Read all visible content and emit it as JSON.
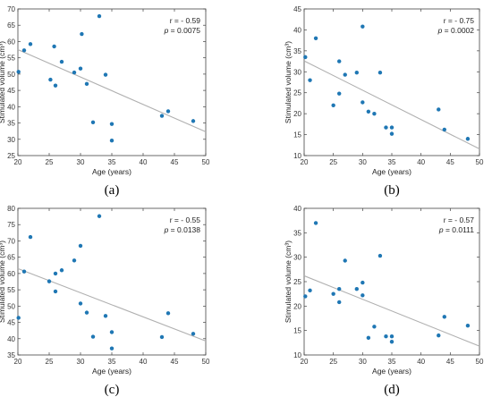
{
  "colors": {
    "points": "#1f77b4",
    "fit_line": "#b0b0b0",
    "axis": "#444444"
  },
  "chart_data": [
    {
      "type": "scatter",
      "panel_label": "(a)",
      "xlabel": "Age (years)",
      "ylabel": "Stimulated volume (cm³)",
      "xlim": [
        20,
        50
      ],
      "ylim": [
        25,
        70
      ],
      "xticks": [
        20,
        25,
        30,
        35,
        40,
        45,
        50
      ],
      "yticks": [
        25,
        30,
        35,
        40,
        45,
        50,
        55,
        60,
        65,
        70
      ],
      "stat_r": "r = - 0.59",
      "stat_p_symbol": "p",
      "stat_p_value": "= 0.0075",
      "fit_line": {
        "x": [
          20,
          50
        ],
        "y": [
          57.5,
          32.3
        ]
      },
      "grid": false,
      "points": [
        {
          "x": 20.1,
          "y": 50.7
        },
        {
          "x": 21.0,
          "y": 57.3
        },
        {
          "x": 22.0,
          "y": 59.2
        },
        {
          "x": 25.2,
          "y": 48.3
        },
        {
          "x": 25.8,
          "y": 58.5
        },
        {
          "x": 26.0,
          "y": 46.5
        },
        {
          "x": 27.0,
          "y": 53.8
        },
        {
          "x": 29.0,
          "y": 50.5
        },
        {
          "x": 30.0,
          "y": 51.7
        },
        {
          "x": 30.2,
          "y": 62.3
        },
        {
          "x": 31.0,
          "y": 47.0
        },
        {
          "x": 32.0,
          "y": 35.2
        },
        {
          "x": 33.0,
          "y": 67.8
        },
        {
          "x": 34.0,
          "y": 49.8
        },
        {
          "x": 35.0,
          "y": 34.7
        },
        {
          "x": 35.0,
          "y": 29.6
        },
        {
          "x": 43.0,
          "y": 37.2
        },
        {
          "x": 44.0,
          "y": 38.6
        },
        {
          "x": 48.0,
          "y": 35.6
        }
      ]
    },
    {
      "type": "scatter",
      "panel_label": "(b)",
      "xlabel": "Age (years)",
      "ylabel": "Stimulated volume (cm³)",
      "xlim": [
        20,
        50
      ],
      "ylim": [
        10,
        45
      ],
      "xticks": [
        20,
        25,
        30,
        35,
        40,
        45,
        50
      ],
      "yticks": [
        10,
        15,
        20,
        25,
        30,
        35,
        40,
        45
      ],
      "stat_r": "r = - 0.75",
      "stat_p_symbol": "p",
      "stat_p_value": "= 0.0002",
      "fit_line": {
        "x": [
          20,
          50
        ],
        "y": [
          32.6,
          11.6
        ]
      },
      "grid": false,
      "points": [
        {
          "x": 20.2,
          "y": 33.5
        },
        {
          "x": 21.0,
          "y": 28.0
        },
        {
          "x": 22.0,
          "y": 38.0
        },
        {
          "x": 25.0,
          "y": 22.0
        },
        {
          "x": 26.0,
          "y": 32.5
        },
        {
          "x": 26.0,
          "y": 24.8
        },
        {
          "x": 27.0,
          "y": 29.3
        },
        {
          "x": 29.0,
          "y": 29.8
        },
        {
          "x": 30.0,
          "y": 40.8
        },
        {
          "x": 30.0,
          "y": 22.7
        },
        {
          "x": 31.0,
          "y": 20.5
        },
        {
          "x": 32.0,
          "y": 20.0
        },
        {
          "x": 33.0,
          "y": 29.8
        },
        {
          "x": 34.0,
          "y": 16.7
        },
        {
          "x": 35.0,
          "y": 16.7
        },
        {
          "x": 35.0,
          "y": 15.2
        },
        {
          "x": 43.0,
          "y": 21.0
        },
        {
          "x": 44.0,
          "y": 16.2
        },
        {
          "x": 48.0,
          "y": 14.0
        }
      ]
    },
    {
      "type": "scatter",
      "panel_label": "(c)",
      "xlabel": "Age (years)",
      "ylabel": "Stimulated volume (cm³)",
      "xlim": [
        20,
        50
      ],
      "ylim": [
        35,
        80
      ],
      "xticks": [
        20,
        25,
        30,
        35,
        40,
        45,
        50
      ],
      "yticks": [
        35,
        40,
        45,
        50,
        55,
        60,
        65,
        70,
        75,
        80
      ],
      "stat_r": "r = - 0.55",
      "stat_p_symbol": "p",
      "stat_p_value": "= 0.0138",
      "fit_line": {
        "x": [
          20,
          50
        ],
        "y": [
          61.5,
          39.3
        ]
      },
      "grid": false,
      "points": [
        {
          "x": 20.1,
          "y": 46.4
        },
        {
          "x": 21.0,
          "y": 60.6
        },
        {
          "x": 22.0,
          "y": 71.2
        },
        {
          "x": 25.0,
          "y": 57.6
        },
        {
          "x": 26.0,
          "y": 60.0
        },
        {
          "x": 26.0,
          "y": 54.5
        },
        {
          "x": 27.0,
          "y": 61.0
        },
        {
          "x": 29.0,
          "y": 64.0
        },
        {
          "x": 30.0,
          "y": 68.5
        },
        {
          "x": 30.0,
          "y": 50.8
        },
        {
          "x": 31.0,
          "y": 48.0
        },
        {
          "x": 32.0,
          "y": 40.6
        },
        {
          "x": 33.0,
          "y": 77.6
        },
        {
          "x": 34.0,
          "y": 47.0
        },
        {
          "x": 35.0,
          "y": 42.0
        },
        {
          "x": 35.0,
          "y": 37.0
        },
        {
          "x": 43.0,
          "y": 40.5
        },
        {
          "x": 44.0,
          "y": 47.8
        },
        {
          "x": 48.0,
          "y": 41.5
        }
      ]
    },
    {
      "type": "scatter",
      "panel_label": "(d)",
      "xlabel": "Age (years)",
      "ylabel": "Stimulated volume (cm³)",
      "xlim": [
        20,
        50
      ],
      "ylim": [
        10,
        40
      ],
      "xticks": [
        20,
        25,
        30,
        35,
        40,
        45,
        50
      ],
      "yticks": [
        10,
        15,
        20,
        25,
        30,
        35,
        40
      ],
      "stat_r": "r = - 0.57",
      "stat_p_symbol": "p",
      "stat_p_value": "= 0.0111",
      "fit_line": {
        "x": [
          20,
          50
        ],
        "y": [
          26.2,
          11.8
        ]
      },
      "grid": false,
      "points": [
        {
          "x": 20.2,
          "y": 22.0
        },
        {
          "x": 21.0,
          "y": 23.2
        },
        {
          "x": 22.0,
          "y": 37.0
        },
        {
          "x": 25.0,
          "y": 22.5
        },
        {
          "x": 26.0,
          "y": 23.5
        },
        {
          "x": 26.0,
          "y": 20.8
        },
        {
          "x": 27.0,
          "y": 29.3
        },
        {
          "x": 29.0,
          "y": 23.5
        },
        {
          "x": 30.0,
          "y": 24.8
        },
        {
          "x": 30.0,
          "y": 22.2
        },
        {
          "x": 31.0,
          "y": 13.5
        },
        {
          "x": 32.0,
          "y": 15.8
        },
        {
          "x": 33.0,
          "y": 30.3
        },
        {
          "x": 34.0,
          "y": 13.8
        },
        {
          "x": 35.0,
          "y": 13.8
        },
        {
          "x": 35.0,
          "y": 12.7
        },
        {
          "x": 43.0,
          "y": 14.0
        },
        {
          "x": 44.0,
          "y": 17.8
        },
        {
          "x": 48.0,
          "y": 16.0
        }
      ]
    }
  ]
}
